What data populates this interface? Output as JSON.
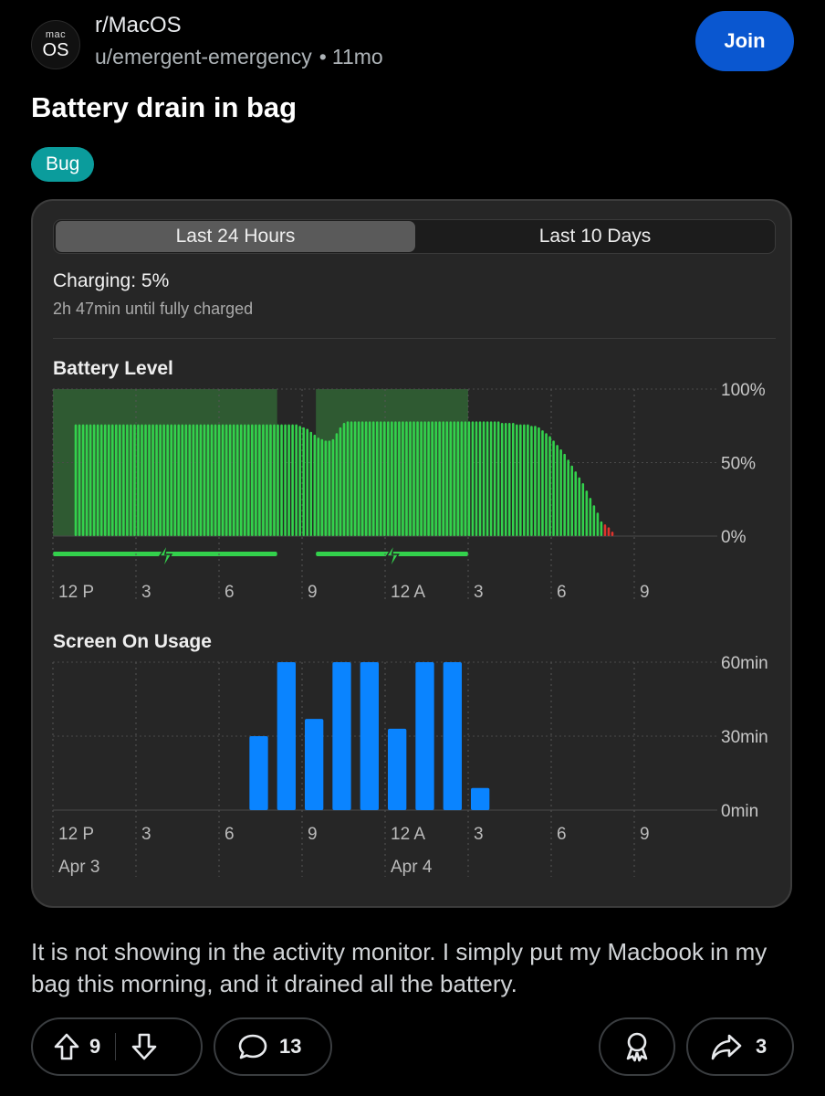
{
  "subreddit": {
    "name": "r/MacOS",
    "avatar_small": "mac",
    "avatar_big": "OS"
  },
  "post": {
    "author": "u/emergent-emergency",
    "separator": "•",
    "age": "11mo",
    "title": "Battery drain in bag",
    "flair": "Bug",
    "body": "It is not showing in the activity monitor. I simply put my Macbook in my bag this morning, and it drained all the battery."
  },
  "join_label": "Join",
  "battery_screen": {
    "tabs": [
      {
        "label": "Last 24 Hours",
        "active": true
      },
      {
        "label": "Last 10 Days",
        "active": false
      }
    ],
    "charging_status": "Charging: 5%",
    "charging_eta": "2h 47min until fully charged",
    "battery_section_title": "Battery Level",
    "usage_section_title": "Screen On Usage",
    "x_ticks": [
      "12 P",
      "3",
      "6",
      "9",
      "12 A",
      "3",
      "6",
      "9"
    ],
    "date_labels": [
      "Apr 3",
      "Apr 4"
    ],
    "colors": {
      "battery_bar": "#33d14c",
      "battery_low": "#e0332d",
      "charging_band": "#2f5a32",
      "usage_bar": "#0a84ff"
    }
  },
  "actions": {
    "upvotes": "9",
    "comments": "13",
    "shares": "3"
  },
  "chart_data": [
    {
      "type": "bar",
      "title": "Battery Level",
      "y_ticks": [
        "100%",
        "50%",
        "0%"
      ],
      "ylim": [
        0,
        100
      ],
      "x_ticks": [
        "12 P",
        "3",
        "6",
        "9",
        "12 A",
        "3",
        "6",
        "9"
      ],
      "x_range_hours": [
        0,
        24
      ],
      "charging_periods_hours": [
        [
          0,
          8.1
        ],
        [
          9.5,
          15
        ]
      ],
      "low_threshold": 10,
      "values": [
        76,
        76,
        76,
        76,
        76,
        76,
        76,
        76,
        76,
        76,
        76,
        76,
        76,
        76,
        76,
        76,
        76,
        76,
        76,
        76,
        76,
        76,
        76,
        76,
        76,
        76,
        76,
        76,
        76,
        76,
        76,
        76,
        76,
        76,
        76,
        76,
        76,
        76,
        76,
        76,
        76,
        76,
        76,
        76,
        76,
        76,
        76,
        76,
        76,
        76,
        76,
        76,
        76,
        76,
        76,
        76,
        76,
        76,
        76,
        76,
        76,
        75,
        74,
        73,
        71,
        69,
        67,
        66,
        65,
        65,
        66,
        70,
        74,
        77,
        78,
        78,
        78,
        78,
        78,
        78,
        78,
        78,
        78,
        78,
        78,
        78,
        78,
        78,
        78,
        78,
        78,
        78,
        78,
        78,
        78,
        78,
        78,
        78,
        78,
        78,
        78,
        78,
        78,
        78,
        78,
        78,
        78,
        78,
        78,
        78,
        78,
        78,
        78,
        78,
        78,
        78,
        77,
        77,
        77,
        77,
        76,
        76,
        76,
        76,
        75,
        75,
        74,
        72,
        70,
        68,
        65,
        62,
        59,
        56,
        52,
        48,
        44,
        40,
        36,
        31,
        26,
        21,
        16,
        10,
        8,
        6,
        3
      ]
    },
    {
      "type": "bar",
      "title": "Screen On Usage",
      "y_ticks": [
        "60min",
        "30min",
        "0min"
      ],
      "ylim": [
        0,
        60
      ],
      "x_ticks": [
        "12 P",
        "3",
        "6",
        "9",
        "12 A",
        "3",
        "6",
        "9"
      ],
      "hours": [
        7,
        8,
        9,
        10,
        11,
        12,
        13,
        14,
        15
      ],
      "values": [
        30,
        60,
        37,
        60,
        60,
        33,
        60,
        60,
        9
      ]
    }
  ]
}
